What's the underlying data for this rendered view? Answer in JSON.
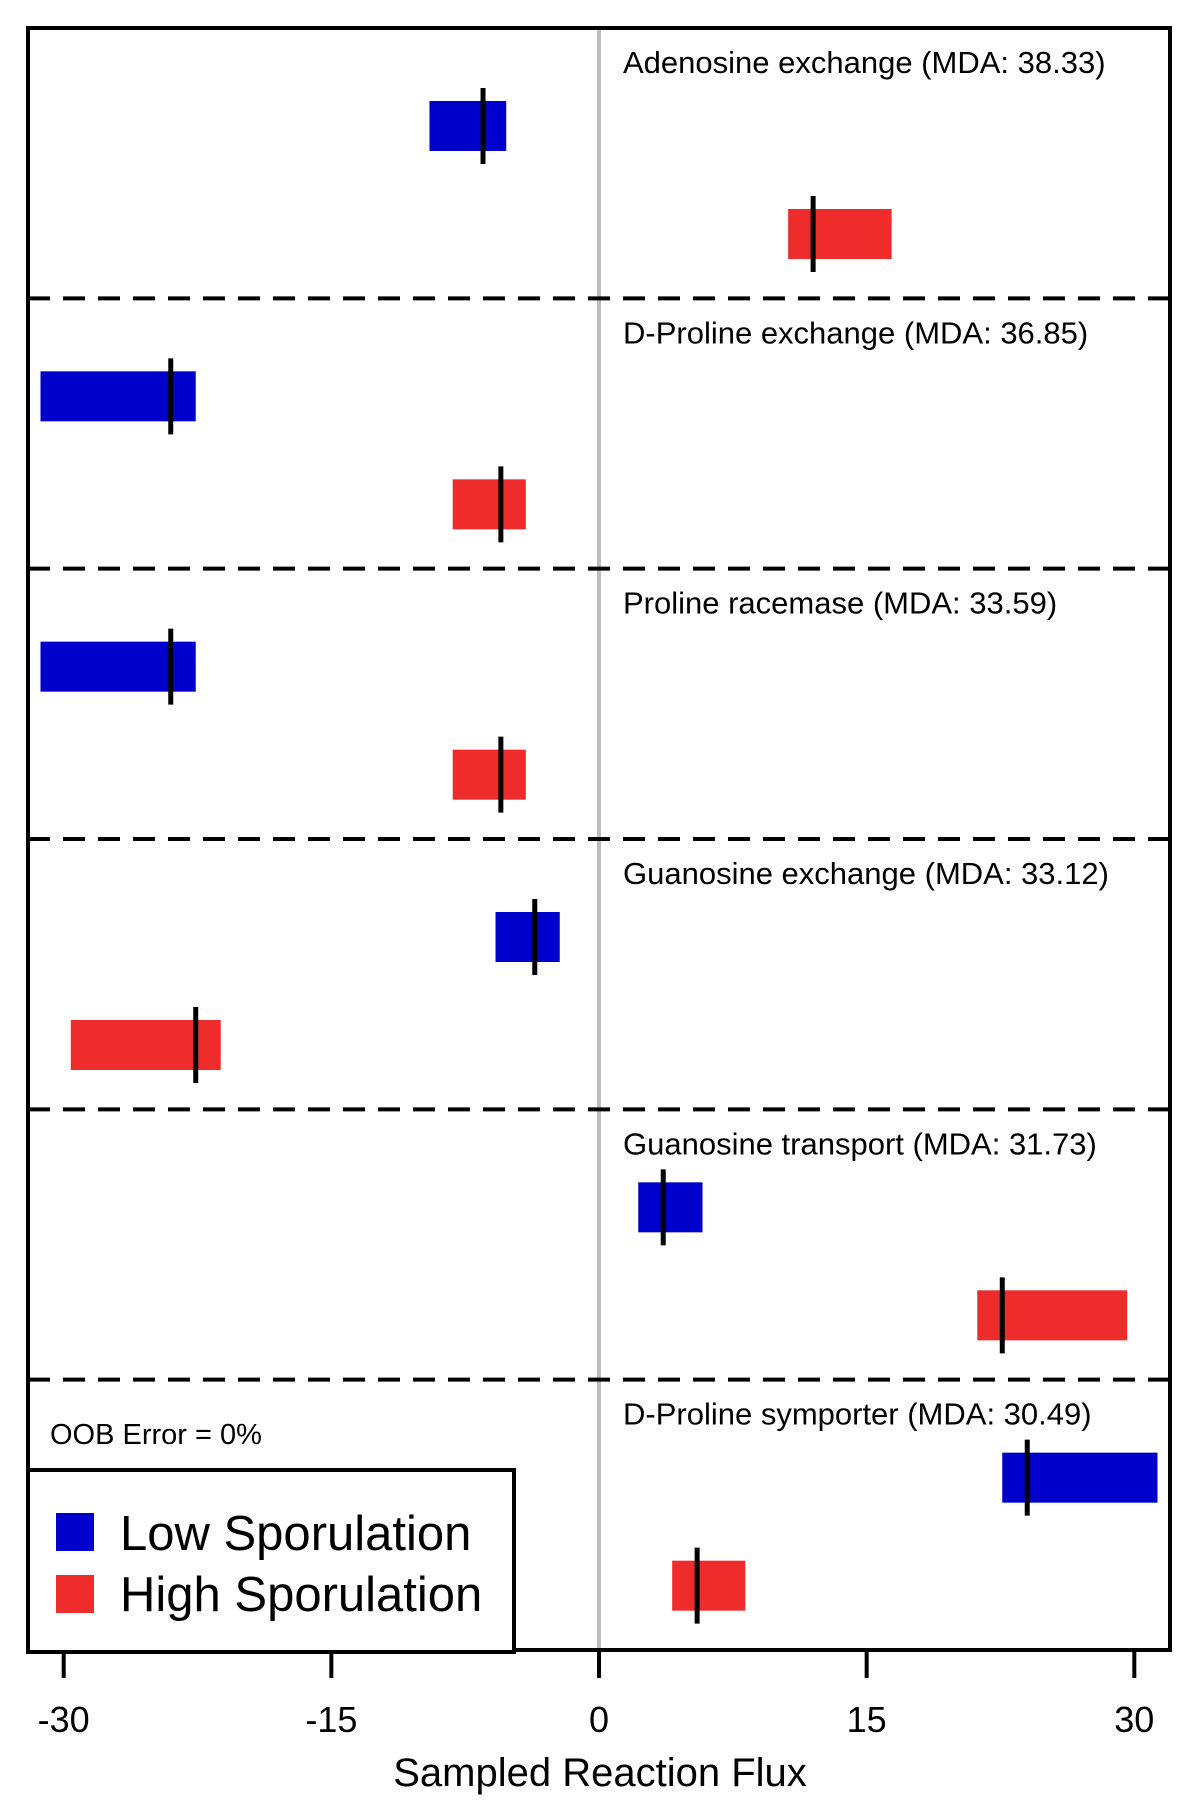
{
  "chart_data": {
    "type": "bar",
    "orientation": "horizontal-range",
    "xlabel": "Sampled Reaction Flux",
    "xlim": [
      -32,
      32
    ],
    "xticks": [
      -30,
      -15,
      0,
      15,
      30
    ],
    "xtick_labels": [
      "-30",
      "-15",
      "0",
      "15",
      "30"
    ],
    "zero_line": 0,
    "annotation": "OOB Error = 0%",
    "legend": {
      "placement": "bottom-left",
      "entries": [
        {
          "label": "Low Sporulation",
          "color": "#0000cd"
        },
        {
          "label": "High Sporulation",
          "color": "#ee2c2c"
        }
      ]
    },
    "series": [
      {
        "name": "Low Sporulation",
        "color": "#0000cd"
      },
      {
        "name": "High Sporulation",
        "color": "#ee2c2c"
      }
    ],
    "reactions": [
      {
        "label": "Adenosine exchange (MDA: 38.33)",
        "low": {
          "min": -9.5,
          "max": -5.2,
          "median": -6.5
        },
        "high": {
          "min": 10.6,
          "max": 16.4,
          "median": 12.0
        }
      },
      {
        "label": "D-Proline exchange (MDA: 36.85)",
        "low": {
          "min": -31.3,
          "max": -22.6,
          "median": -24.0
        },
        "high": {
          "min": -8.2,
          "max": -4.1,
          "median": -5.5
        }
      },
      {
        "label": "Proline racemase (MDA: 33.59)",
        "low": {
          "min": -31.3,
          "max": -22.6,
          "median": -24.0
        },
        "high": {
          "min": -8.2,
          "max": -4.1,
          "median": -5.5
        }
      },
      {
        "label": "Guanosine exchange (MDA: 33.12)",
        "low": {
          "min": -5.8,
          "max": -2.2,
          "median": -3.6
        },
        "high": {
          "min": -29.6,
          "max": -21.2,
          "median": -22.6
        }
      },
      {
        "label": "Guanosine transport (MDA: 31.73)",
        "low": {
          "min": 2.2,
          "max": 5.8,
          "median": 3.6
        },
        "high": {
          "min": 21.2,
          "max": 29.6,
          "median": 22.6
        }
      },
      {
        "label": "D-Proline symporter (MDA: 30.49)",
        "low": {
          "min": 22.6,
          "max": 31.3,
          "median": 24.0
        },
        "high": {
          "min": 4.1,
          "max": 8.2,
          "median": 5.5
        }
      }
    ]
  }
}
